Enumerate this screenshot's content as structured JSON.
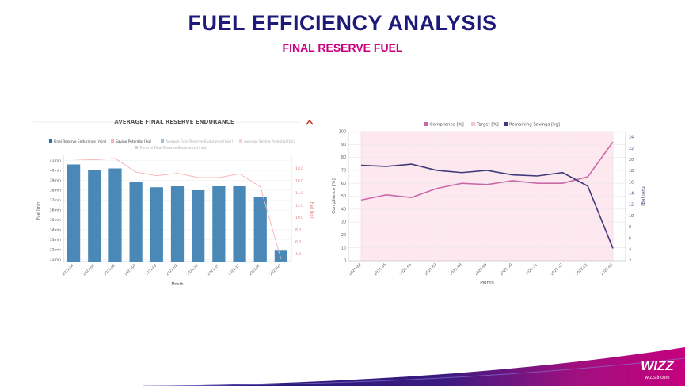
{
  "slide": {
    "title": "FUEL EFFICIENCY ANALYSIS",
    "subtitle": "FINAL RESERVE FUEL",
    "brand": "WIZZ",
    "brand_url": "wizzair.com"
  },
  "chart_data": [
    {
      "type": "bar",
      "title": "AVERAGE FINAL RESERVE ENDURANCE",
      "xlabel": "Month",
      "ylabel": "Fuel [min]",
      "y2label": "Fuel [kg]",
      "legend_placement": "top",
      "legend": [
        "Final Reserve Endurance [min]",
        "Saving Potential [kg]",
        "Average Final Reserve Endurance [min]",
        "Average Saving Potential [kg]",
        "Trend of Final Reserve Endurance [min]"
      ],
      "categories": [
        "2021-04",
        "2021-05",
        "2021-06",
        "2021-07",
        "2021-08",
        "2021-09",
        "2021-10",
        "2021-11",
        "2021-12",
        "2022-01",
        "2022-02"
      ],
      "yticks": [
        "31min",
        "32min",
        "33min",
        "34min",
        "35min",
        "36min",
        "37min",
        "38min",
        "39min",
        "40min",
        "41min"
      ],
      "y2ticks": [
        "4.0",
        "6.0",
        "8.0",
        "10.0",
        "12.0",
        "14.0",
        "16.0",
        "18.0"
      ],
      "ylim": [
        30.8,
        41.2
      ],
      "y2lim": [
        2.8,
        19.6
      ],
      "series": [
        {
          "name": "Final Reserve Endurance [min]",
          "color": "#4a88b8",
          "values": [
            40.6,
            40.0,
            40.2,
            38.8,
            38.3,
            38.4,
            38.0,
            38.4,
            38.4,
            37.3,
            31.9
          ]
        },
        {
          "name": "Saving Potential [kg]",
          "color": "#f5b3b3",
          "values": [
            19.5,
            19.4,
            19.6,
            17.4,
            16.8,
            17.2,
            16.5,
            16.5,
            17.1,
            15.0,
            3.2
          ]
        }
      ],
      "collapse_icon": "chevron-up-icon"
    },
    {
      "type": "line",
      "xlabel": "Month",
      "ylabel": "Compliance [%]",
      "y2label": "Fuel [kg]",
      "legend_placement": "top",
      "legend": [
        "Compliance [%]",
        "Target [%]",
        "Remaining Savings [kg]"
      ],
      "categories": [
        "2021-04",
        "2021-05",
        "2021-06",
        "2021-07",
        "2021-08",
        "2021-09",
        "2021-10",
        "2021-11",
        "2021-12",
        "2022-01",
        "2022-02"
      ],
      "yticks": [
        "0",
        "10",
        "20",
        "30",
        "40",
        "50",
        "60",
        "70",
        "80",
        "90",
        "100"
      ],
      "y2ticks": [
        "2",
        "4",
        "6",
        "8",
        "10",
        "12",
        "14",
        "16",
        "18",
        "20",
        "22",
        "24"
      ],
      "ylim": [
        0,
        100
      ],
      "y2lim": [
        2,
        25
      ],
      "series": [
        {
          "name": "Compliance [%]",
          "color": "#c96aa8",
          "axis": "left",
          "values": [
            47,
            51,
            49,
            56,
            60,
            59,
            62,
            60,
            60,
            65,
            92
          ]
        },
        {
          "name": "Target [%]",
          "color": "#f5c6d6",
          "axis": "left",
          "type": "area",
          "values": [
            100,
            100,
            100,
            100,
            100,
            100,
            100,
            100,
            100,
            100,
            100
          ]
        },
        {
          "name": "Remaining Savings [kg]",
          "color": "#3f3a7a",
          "axis": "right",
          "values": [
            19.0,
            18.8,
            19.2,
            18.1,
            17.7,
            18.1,
            17.3,
            17.1,
            17.7,
            15.3,
            4.2
          ]
        }
      ]
    }
  ]
}
